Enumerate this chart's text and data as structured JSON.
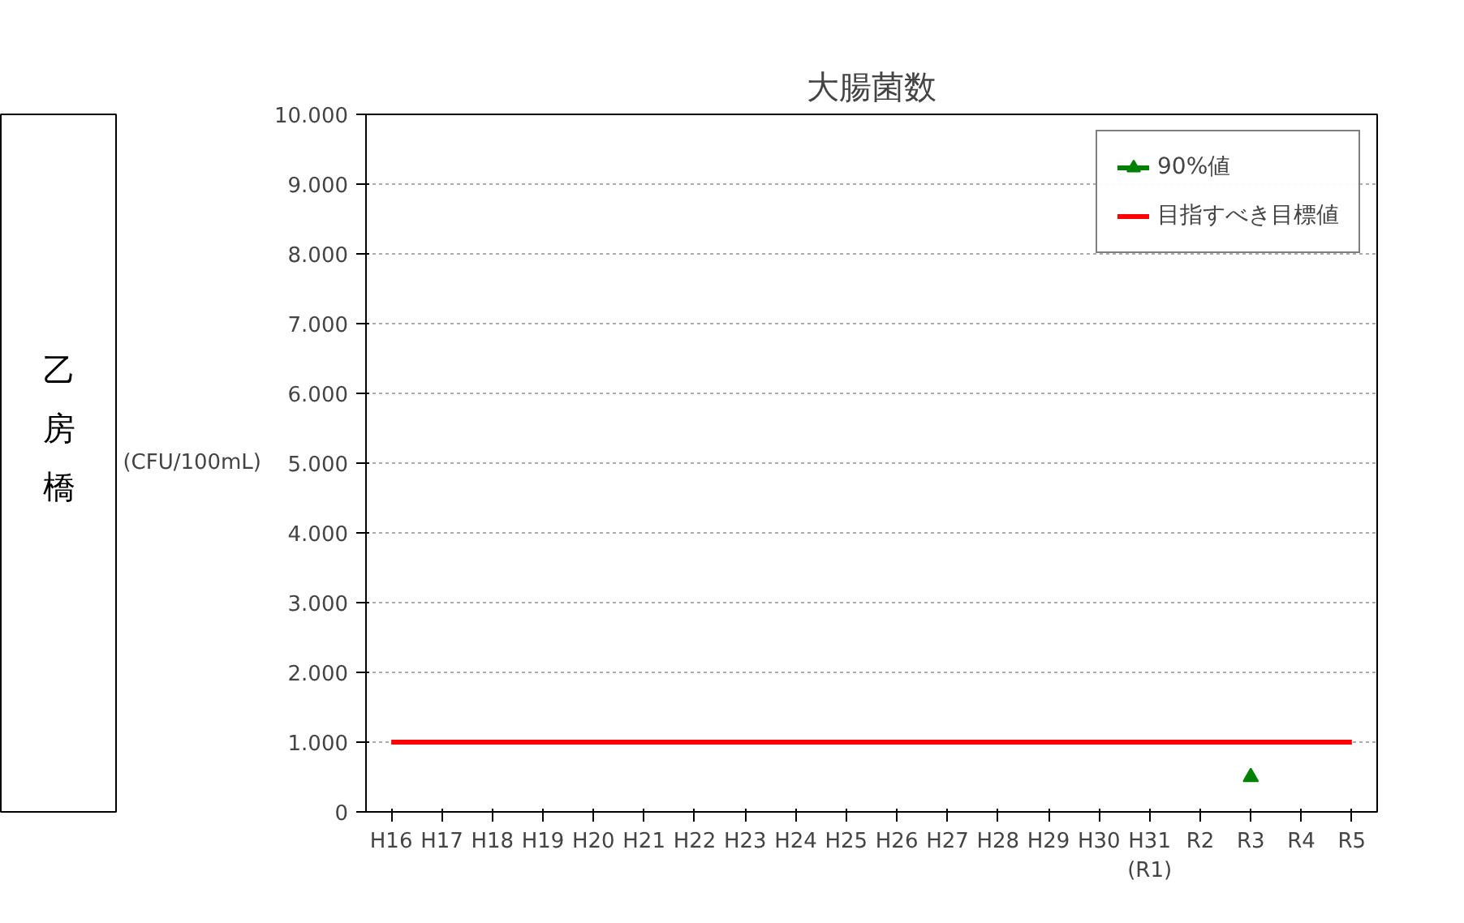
{
  "chart_data": {
    "type": "line",
    "title": "大腸菌数",
    "ylabel": "(CFU/100mL)",
    "categories": [
      "H16",
      "H17",
      "H18",
      "H19",
      "H20",
      "H21",
      "H22",
      "H23",
      "H24",
      "H25",
      "H26",
      "H27",
      "H28",
      "H29",
      "H30",
      "H31\n(R1)",
      "R2",
      "R3",
      "R4",
      "R5"
    ],
    "series": [
      {
        "name": "90%値",
        "color": "#008000",
        "marker": "triangle",
        "values": [
          null,
          null,
          null,
          null,
          null,
          null,
          null,
          null,
          null,
          null,
          null,
          null,
          null,
          null,
          null,
          null,
          null,
          500,
          null,
          null
        ]
      },
      {
        "name": "目指すべき目標値",
        "color": "#ff0000",
        "marker": "none",
        "values": [
          1000,
          1000,
          1000,
          1000,
          1000,
          1000,
          1000,
          1000,
          1000,
          1000,
          1000,
          1000,
          1000,
          1000,
          1000,
          1000,
          1000,
          1000,
          1000,
          1000
        ]
      }
    ],
    "ylim": [
      0,
      10000
    ],
    "yticks": [
      0,
      {
        "value": 1000,
        "label": "1.000"
      },
      {
        "value": 2000,
        "label": "2.000"
      },
      {
        "value": 3000,
        "label": "3.000"
      },
      {
        "value": 4000,
        "label": "4.000"
      },
      {
        "value": 5000,
        "label": "5.000"
      },
      {
        "value": 6000,
        "label": "6.000"
      },
      {
        "value": 7000,
        "label": "7.000"
      },
      {
        "value": 8000,
        "label": "8.000"
      },
      {
        "value": 9000,
        "label": "9.000"
      },
      {
        "value": 10000,
        "label": "10.000"
      }
    ],
    "grid": "y",
    "legend": "top right",
    "annotations": [
      "乙房橋"
    ]
  }
}
